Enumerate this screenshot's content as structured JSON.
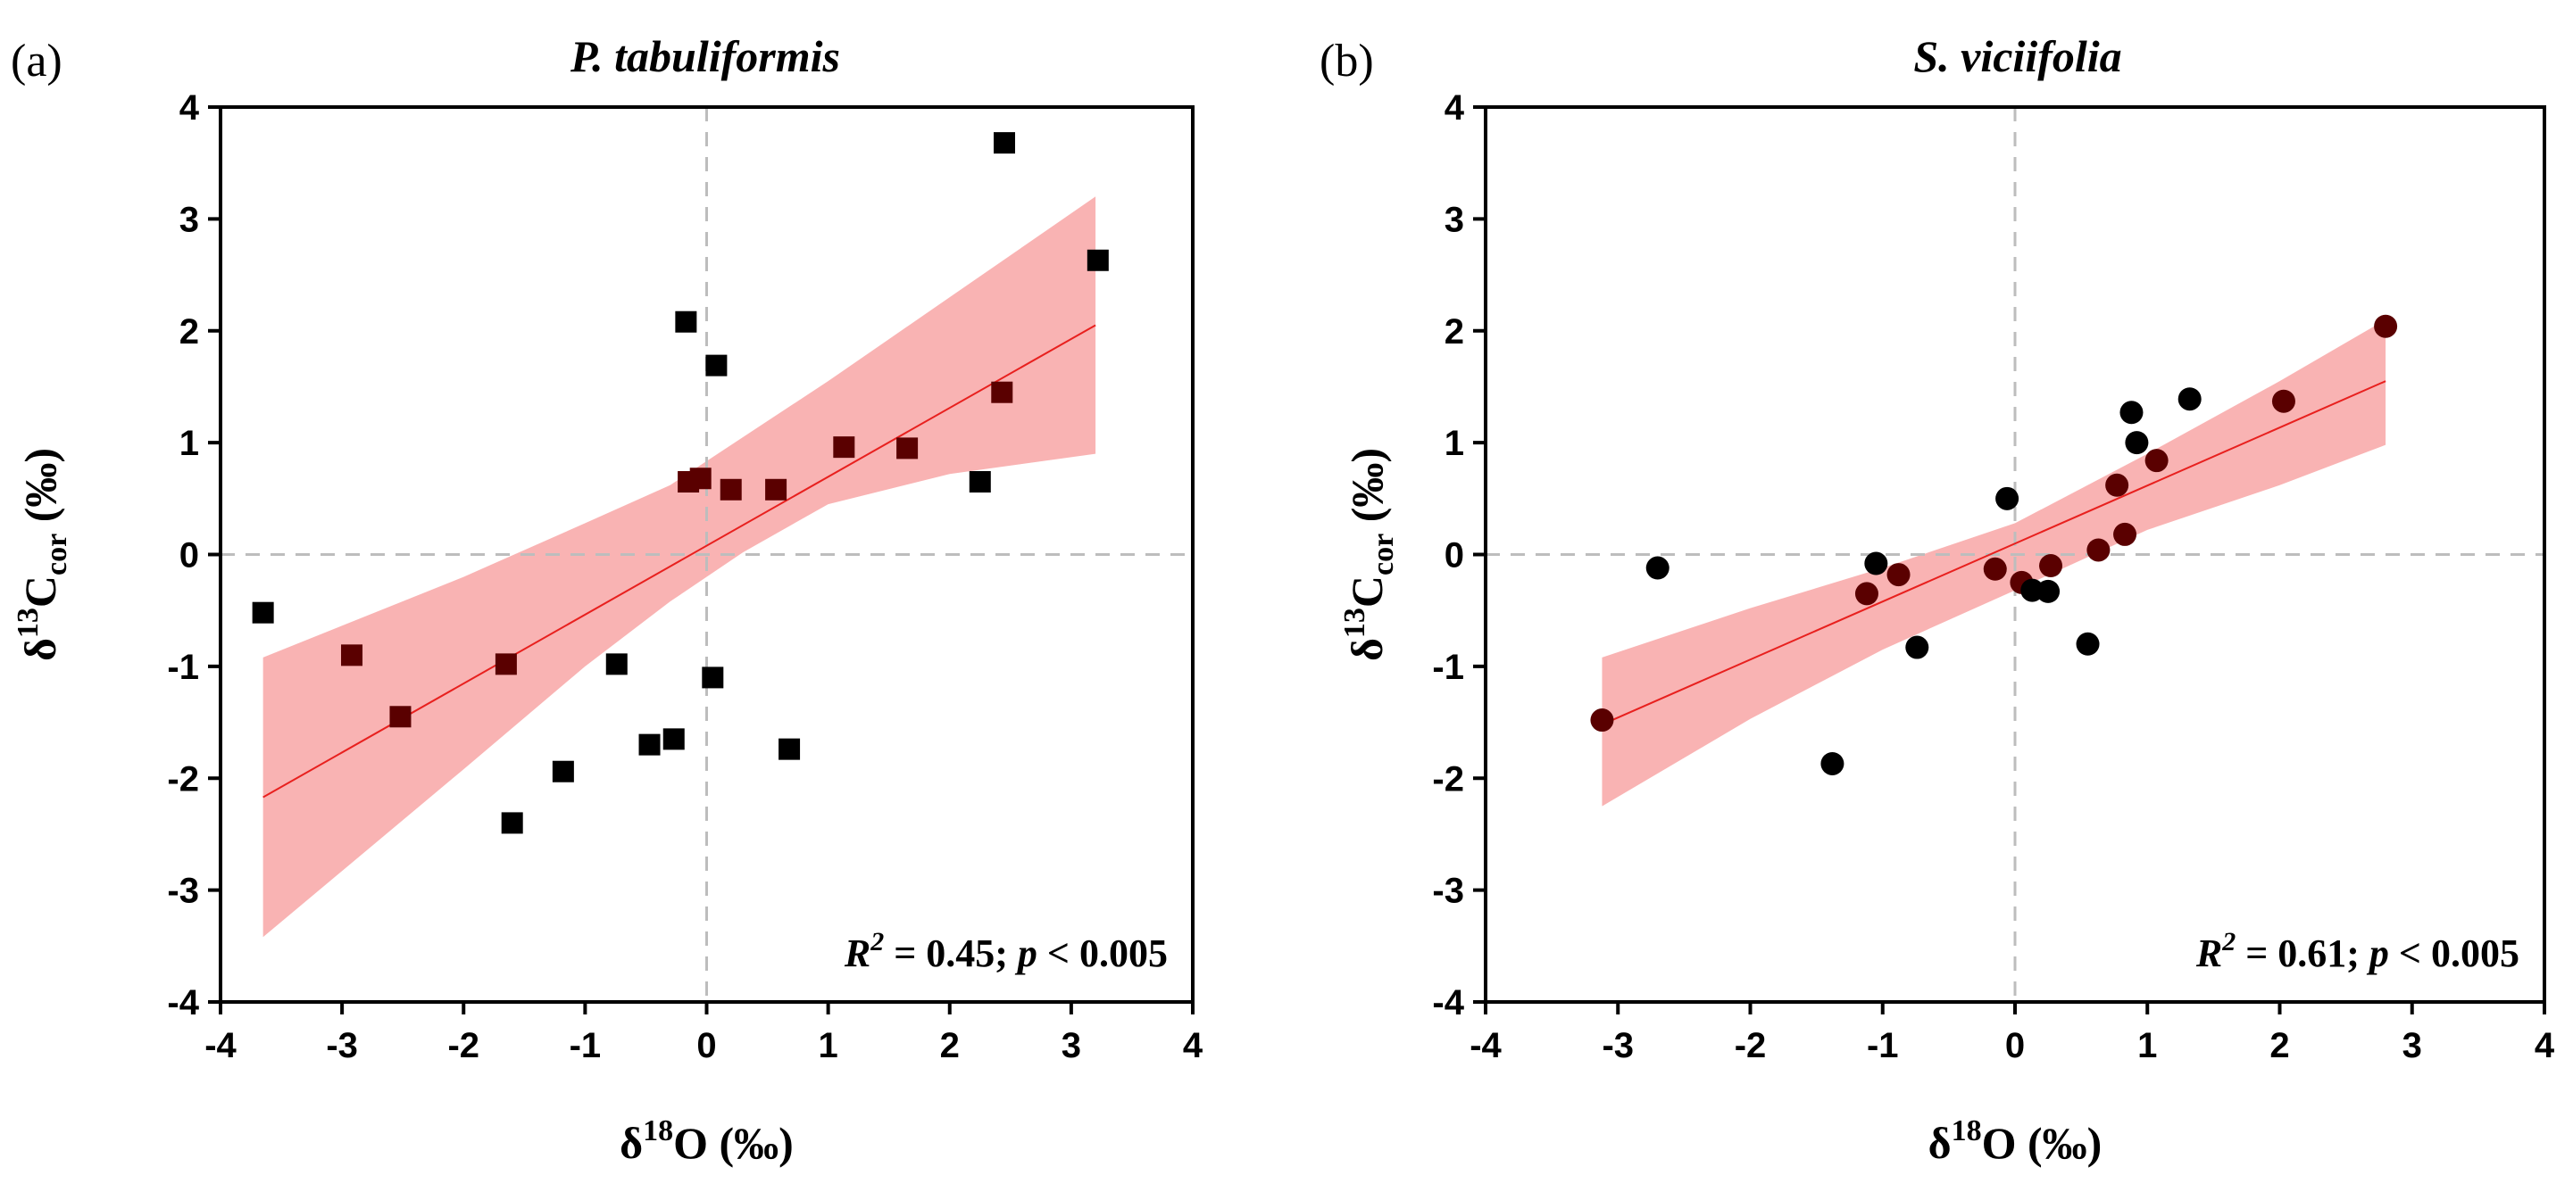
{
  "chart_data": [
    {
      "type": "scatter",
      "panel_label": "(a)",
      "title": "P. tabuliformis",
      "xlabel": "δ18O (‰)",
      "ylabel": "δ13Ccor (‰)",
      "xlim": [
        -4,
        4
      ],
      "ylim": [
        -4,
        4
      ],
      "xticks": [
        -4,
        -3,
        -2,
        -1,
        0,
        1,
        2,
        3,
        4
      ],
      "yticks": [
        -4,
        -3,
        -2,
        -1,
        0,
        1,
        2,
        3,
        4
      ],
      "marker": "square",
      "stat_text": {
        "r_label": "R",
        "r_sup": "2",
        "r_value": " = 0.45; ",
        "p_label": "p",
        "p_value": " < 0.005"
      },
      "points": [
        {
          "x": -3.65,
          "y": -0.52
        },
        {
          "x": -2.92,
          "y": -0.9
        },
        {
          "x": -2.52,
          "y": -1.45
        },
        {
          "x": -1.65,
          "y": -0.98
        },
        {
          "x": -1.6,
          "y": -2.4
        },
        {
          "x": -1.18,
          "y": -1.94
        },
        {
          "x": -0.74,
          "y": -0.98
        },
        {
          "x": -0.47,
          "y": -1.7
        },
        {
          "x": -0.27,
          "y": -1.65
        },
        {
          "x": -0.17,
          "y": 2.08
        },
        {
          "x": -0.15,
          "y": 0.65
        },
        {
          "x": -0.05,
          "y": 0.68
        },
        {
          "x": 0.05,
          "y": -1.1
        },
        {
          "x": 0.08,
          "y": 1.69
        },
        {
          "x": 0.2,
          "y": 0.58
        },
        {
          "x": 0.57,
          "y": 0.58
        },
        {
          "x": 0.68,
          "y": -1.74
        },
        {
          "x": 1.13,
          "y": 0.96
        },
        {
          "x": 1.65,
          "y": 0.95
        },
        {
          "x": 2.25,
          "y": 0.65
        },
        {
          "x": 2.43,
          "y": 1.45
        },
        {
          "x": 2.45,
          "y": 3.68
        },
        {
          "x": 3.22,
          "y": 2.63
        }
      ],
      "fit": {
        "x1": -3.65,
        "y1": -2.17,
        "x2": 3.2,
        "y2": 2.05
      },
      "band_upper": [
        [
          -3.65,
          -0.92
        ],
        [
          -2.0,
          -0.2
        ],
        [
          -1.0,
          0.28
        ],
        [
          -0.3,
          0.62
        ],
        [
          0.3,
          1.05
        ],
        [
          1.0,
          1.55
        ],
        [
          2.0,
          2.3
        ],
        [
          3.2,
          3.2
        ]
      ],
      "band_lower": [
        [
          -3.65,
          -3.42
        ],
        [
          -2.0,
          -1.92
        ],
        [
          -1.0,
          -1.0
        ],
        [
          -0.3,
          -0.42
        ],
        [
          0.3,
          0.02
        ],
        [
          1.0,
          0.45
        ],
        [
          2.0,
          0.72
        ],
        [
          3.2,
          0.9
        ]
      ],
      "colors": {
        "band": "#f9b3b3",
        "fit": "#e8201e",
        "marker": "#000000",
        "marker_in_band": "#5a0000",
        "zero_line": "#bdbdbd"
      }
    },
    {
      "type": "scatter",
      "panel_label": "(b)",
      "title": "S. viciifolia",
      "xlabel": "δ18O (‰)",
      "ylabel": "δ13Ccor (‰)",
      "xlim": [
        -4,
        4
      ],
      "ylim": [
        -4,
        4
      ],
      "xticks": [
        -4,
        -3,
        -2,
        -1,
        0,
        1,
        2,
        3,
        4
      ],
      "yticks": [
        -4,
        -3,
        -2,
        -1,
        0,
        1,
        2,
        3,
        4
      ],
      "marker": "circle",
      "stat_text": {
        "r_label": "R",
        "r_sup": "2",
        "r_value": " = 0.61; ",
        "p_label": "p",
        "p_value": " < 0.005"
      },
      "points": [
        {
          "x": -3.12,
          "y": -1.48
        },
        {
          "x": -2.7,
          "y": -0.12
        },
        {
          "x": -1.38,
          "y": -1.87
        },
        {
          "x": -1.12,
          "y": -0.35
        },
        {
          "x": -1.05,
          "y": -0.08
        },
        {
          "x": -0.88,
          "y": -0.18
        },
        {
          "x": -0.74,
          "y": -0.83
        },
        {
          "x": -0.15,
          "y": -0.13
        },
        {
          "x": -0.06,
          "y": 0.5
        },
        {
          "x": 0.05,
          "y": -0.25
        },
        {
          "x": 0.13,
          "y": -0.32
        },
        {
          "x": 0.25,
          "y": -0.33
        },
        {
          "x": 0.27,
          "y": -0.1
        },
        {
          "x": 0.55,
          "y": -0.8
        },
        {
          "x": 0.63,
          "y": 0.04
        },
        {
          "x": 0.77,
          "y": 0.62
        },
        {
          "x": 0.83,
          "y": 0.18
        },
        {
          "x": 0.88,
          "y": 1.27
        },
        {
          "x": 0.92,
          "y": 1.0
        },
        {
          "x": 1.07,
          "y": 0.84
        },
        {
          "x": 1.32,
          "y": 1.39
        },
        {
          "x": 2.03,
          "y": 1.37
        },
        {
          "x": 2.8,
          "y": 2.04
        }
      ],
      "fit": {
        "x1": -3.12,
        "y1": -1.52,
        "x2": 2.8,
        "y2": 1.55
      },
      "band_upper": [
        [
          -3.12,
          -0.92
        ],
        [
          -2.0,
          -0.48
        ],
        [
          -1.0,
          -0.12
        ],
        [
          0.0,
          0.28
        ],
        [
          1.0,
          0.9
        ],
        [
          2.0,
          1.55
        ],
        [
          2.8,
          2.1
        ]
      ],
      "band_lower": [
        [
          -3.12,
          -2.25
        ],
        [
          -2.0,
          -1.47
        ],
        [
          -1.0,
          -0.85
        ],
        [
          0.0,
          -0.32
        ],
        [
          1.0,
          0.22
        ],
        [
          2.0,
          0.62
        ],
        [
          2.8,
          0.98
        ]
      ],
      "colors": {
        "band": "#f9b3b3",
        "fit": "#e8201e",
        "marker": "#000000",
        "marker_in_band": "#5a0000",
        "zero_line": "#bdbdbd"
      }
    }
  ]
}
